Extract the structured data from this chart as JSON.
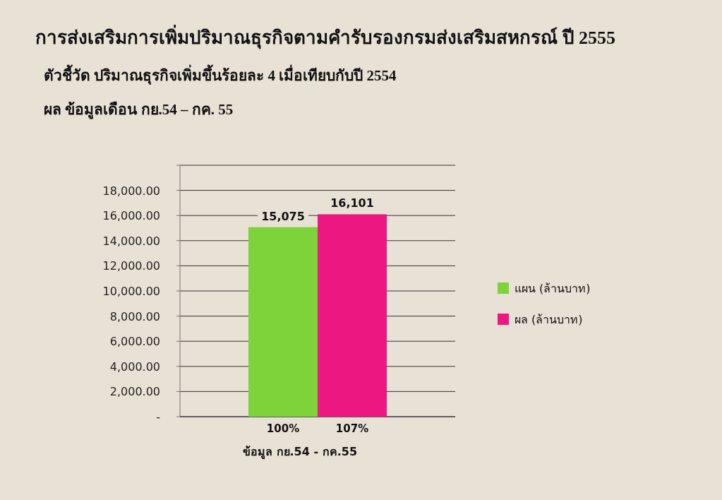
{
  "chart_data": {
    "type": "bar",
    "title": "การส่งเสริมการเพิ่มปริมาณธุรกิจตามคำรับรองกรมส่งเสริมสหกรณ์ ปี 2555",
    "subtitle": "ตัวชี้วัด    ปริมาณธุรกิจเพิ่มขึ้นร้อยละ 4 เมื่อเทียบกับปี 2554",
    "annotations": [
      "ผล  ข้อมูลเดือน กย.54 – กค. 55"
    ],
    "xlabel": "ข้อมูล กย.54 - กค.55",
    "categories": [
      "100%",
      "107%"
    ],
    "series": [
      {
        "name": "แผน (ล้านบาท)",
        "color": "#7ed23a",
        "values": [
          15075,
          null
        ],
        "value_labels": [
          "15,075",
          null
        ]
      },
      {
        "name": "ผล (ล้านบาท)",
        "color": "#ec1780",
        "values": [
          null,
          16101
        ],
        "value_labels": [
          null,
          "16,101"
        ]
      }
    ],
    "ylim": [
      0,
      20000
    ],
    "yticks": [
      {
        "value": 0,
        "label": "-"
      },
      {
        "value": 2000,
        "label": "2,000.00"
      },
      {
        "value": 4000,
        "label": "4,000.00"
      },
      {
        "value": 6000,
        "label": "6,000.00"
      },
      {
        "value": 8000,
        "label": "8,000.00"
      },
      {
        "value": 10000,
        "label": "10,000.00"
      },
      {
        "value": 12000,
        "label": "12,000.00"
      },
      {
        "value": 14000,
        "label": "14,000.00"
      },
      {
        "value": 16000,
        "label": "16,000.00"
      },
      {
        "value": 18000,
        "label": "18,000.00"
      },
      {
        "value": 20000,
        "label": null
      }
    ],
    "grid": "y",
    "legend": "right"
  }
}
